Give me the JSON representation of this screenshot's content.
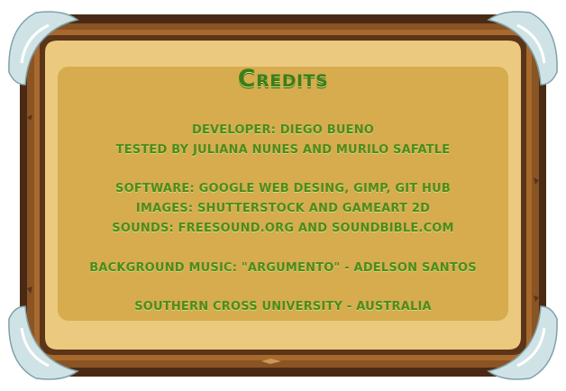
{
  "screen": {
    "title": "Credits",
    "lines": {
      "developer": "Developer: Diego Bueno",
      "tested_by": "Tested by Juliana Nunes and Murilo Safatle",
      "software": "Software: Google Web Desing, GIMP, Git Hub",
      "images": "Images: Shutterstock and GameArt 2D",
      "sounds": "Sounds: freesound.org and soundbible.com",
      "music": "Background music: \"Argumento\" - Adelson Santos",
      "university": "Southern Cross University - Australia"
    }
  },
  "colors": {
    "text_green": "#4f8a1c",
    "title_green": "#3e7d17",
    "wood_dark": "#4a2a14",
    "wood_mid": "#8a5424",
    "parchment_outer": "#e9c67c",
    "parchment_inner": "#d6ac4f"
  }
}
